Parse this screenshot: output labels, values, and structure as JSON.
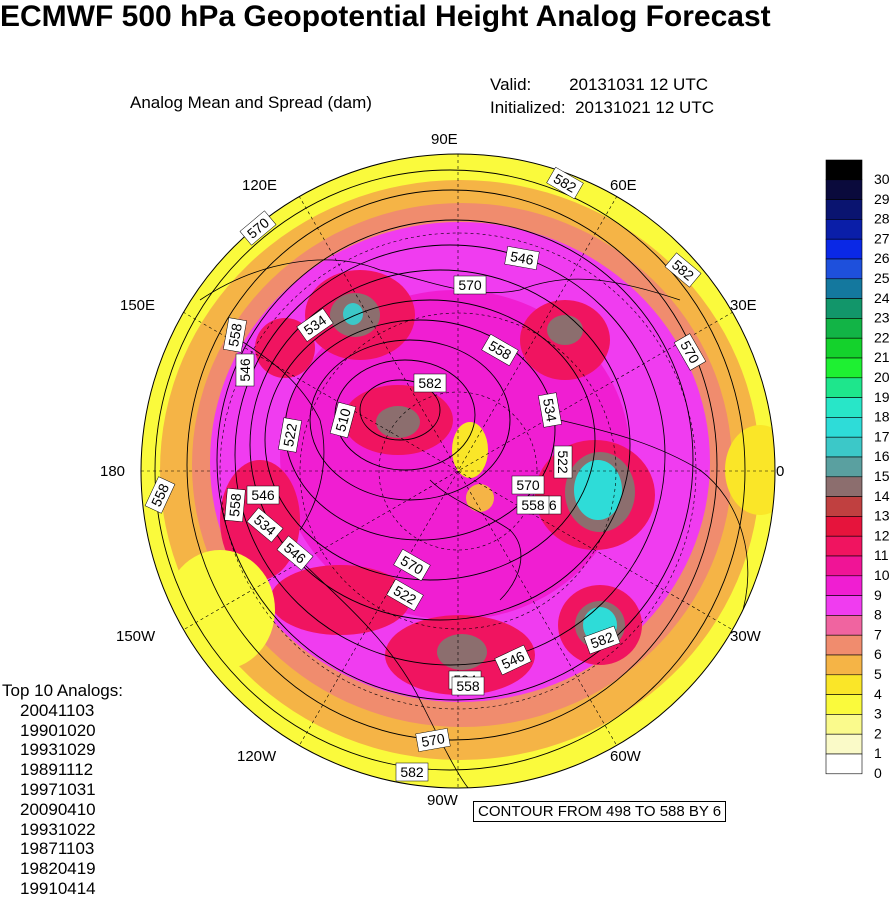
{
  "title": "ECMWF 500 hPa Geopotential Height Analog Forecast",
  "subtitle": "Analog Mean and Spread (dam)",
  "valid_label": "Valid:",
  "valid_value": "20131031 12 UTC",
  "init_label": "Initialized:",
  "init_value": "20131021 12 UTC",
  "longitude_labels": {
    "lon_90E": "90E",
    "lon_60E": "60E",
    "lon_30E": "30E",
    "lon_0": "0",
    "lon_30W": "30W",
    "lon_60W": "60W",
    "lon_90W": "90W",
    "lon_120W": "120W",
    "lon_150W": "150W",
    "lon_180": "180",
    "lon_150E": "150E",
    "lon_120E": "120E"
  },
  "analogs_title": "Top 10 Analogs:",
  "analogs": [
    "20041103",
    "19901020",
    "19931029",
    "19891112",
    "19971031",
    "20090410",
    "19931022",
    "19871103",
    "19820419",
    "19910414"
  ],
  "contour_info": "CONTOUR FROM 498 TO 588 BY 6",
  "colorbar": {
    "labels": [
      "30",
      "29",
      "28",
      "27",
      "26",
      "25",
      "24",
      "23",
      "22",
      "21",
      "20",
      "19",
      "18",
      "17",
      "16",
      "15",
      "14",
      "13",
      "12",
      "11",
      "10",
      "9",
      "8",
      "7",
      "6",
      "5",
      "4",
      "3",
      "2",
      "1",
      "0"
    ],
    "colors": [
      "#000000",
      "#0a0a3c",
      "#0a1470",
      "#0a1ea8",
      "#0a28e6",
      "#1e50dc",
      "#14789e",
      "#12966a",
      "#12b446",
      "#14d22c",
      "#1ef032",
      "#1ee68c",
      "#28e6c8",
      "#2edcd8",
      "#3cc8c8",
      "#5aa0a0",
      "#8c6e6e",
      "#c04040",
      "#e6143c",
      "#f01460",
      "#f01496",
      "#f01ed2",
      "#f03cf0",
      "#f064a0",
      "#f08c6e",
      "#f5b446",
      "#fae628",
      "#fafa3c",
      "#fafa8c",
      "#fafac8",
      "#ffffff"
    ]
  },
  "contour_labels": [
    "582",
    "570",
    "558",
    "546",
    "534",
    "522",
    "510",
    "582",
    "570",
    "558",
    "546",
    "534",
    "522",
    "582",
    "570",
    "558",
    "546",
    "534",
    "570",
    "558",
    "546",
    "582",
    "570",
    "558",
    "522",
    "546",
    "534",
    "570",
    "558",
    "546",
    "582"
  ]
}
